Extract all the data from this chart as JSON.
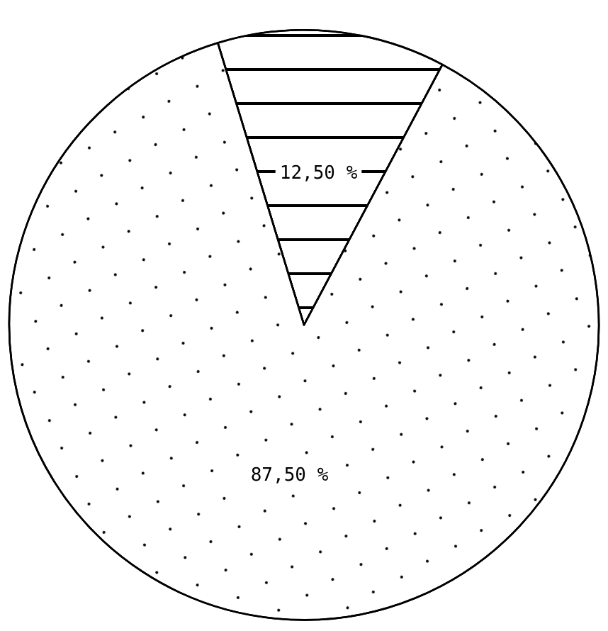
{
  "chart_data": {
    "type": "pie",
    "categories": [
      null,
      null
    ],
    "values": [
      12.5,
      87.5
    ],
    "value_labels": [
      "12,50 %",
      "87,50 %"
    ],
    "colors": [
      "#ffffff",
      "#ffffff"
    ]
  }
}
